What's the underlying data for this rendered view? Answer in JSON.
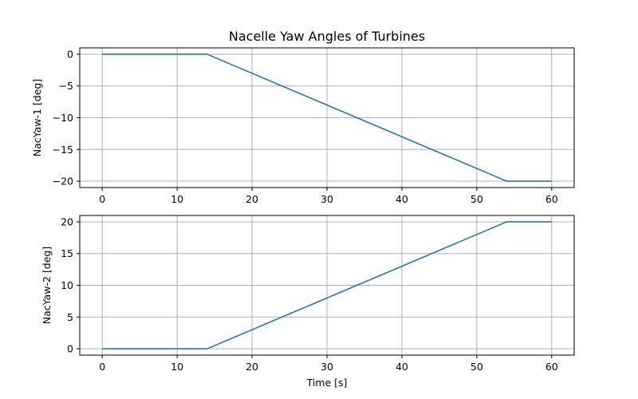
{
  "chart_data": [
    {
      "type": "line",
      "title": "Nacelle Yaw Angles of Turbines",
      "xlabel": "",
      "ylabel": "NacYaw-1 [deg]",
      "xlim": [
        -3,
        63
      ],
      "ylim": [
        -21,
        1
      ],
      "xticks": [
        0,
        10,
        20,
        30,
        40,
        50,
        60
      ],
      "yticks": [
        0,
        -5,
        -10,
        -15,
        -20
      ],
      "xtick_labels": [
        "0",
        "10",
        "20",
        "30",
        "40",
        "50",
        "60"
      ],
      "ytick_labels": [
        "0",
        "−5",
        "−10",
        "−15",
        "−20"
      ],
      "grid": true,
      "series": [
        {
          "color": "#1f77b4",
          "x": [
            0,
            14,
            54,
            60
          ],
          "y": [
            0,
            0,
            -20,
            -20
          ]
        }
      ]
    },
    {
      "type": "line",
      "title": "",
      "xlabel": "Time [s]",
      "ylabel": "NacYaw-2 [deg]",
      "xlim": [
        -3,
        63
      ],
      "ylim": [
        -1,
        21
      ],
      "xticks": [
        0,
        10,
        20,
        30,
        40,
        50,
        60
      ],
      "yticks": [
        0,
        5,
        10,
        15,
        20
      ],
      "xtick_labels": [
        "0",
        "10",
        "20",
        "30",
        "40",
        "50",
        "60"
      ],
      "ytick_labels": [
        "0",
        "5",
        "10",
        "15",
        "20"
      ],
      "grid": true,
      "series": [
        {
          "color": "#1f77b4",
          "x": [
            0,
            14,
            54,
            60
          ],
          "y": [
            0,
            0,
            20,
            20
          ]
        }
      ]
    }
  ]
}
